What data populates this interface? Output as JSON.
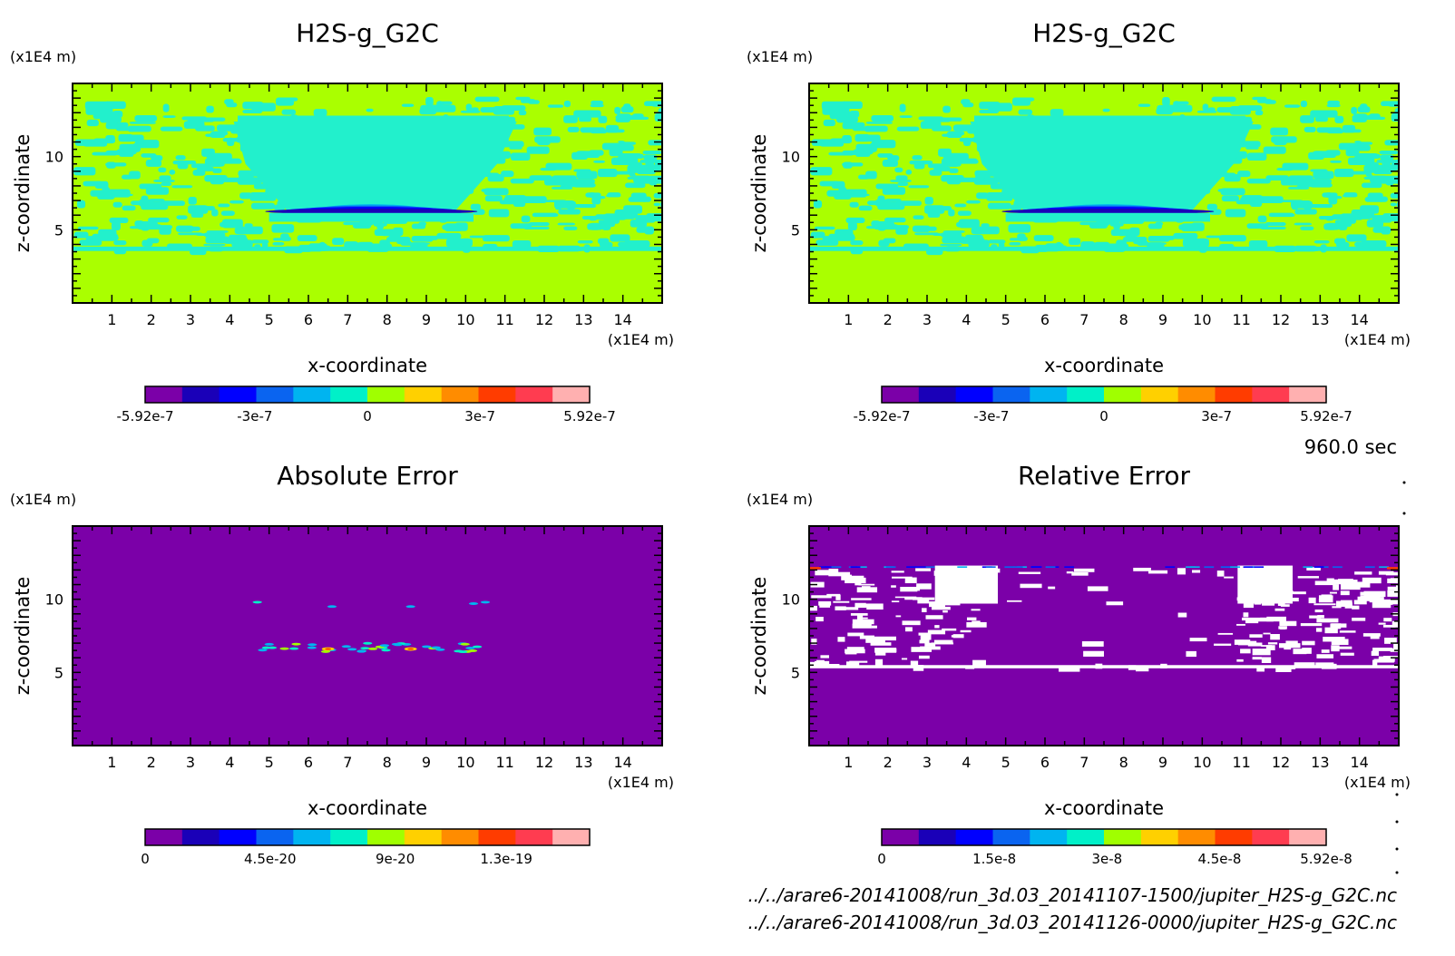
{
  "colors": {
    "levels_11": [
      "#7b00a8",
      "#1a00b8",
      "#0000ff",
      "#0a64f0",
      "#00b4f0",
      "#00f0c8",
      "#a0ff00",
      "#ffd000",
      "#ff8c00",
      "#ff3c00",
      "#ff3c50",
      "#ffb0b0"
    ],
    "bg_yellowgreen": "#aaff00",
    "bg_cyan": "#22f0cc",
    "bg_purple": "#7b00a8",
    "white": "#ffffff"
  },
  "time_label": "960.0 sec",
  "files": [
    "../../arare6-20141008/run_3d.03_20141107-1500/jupiter_H2S-g_G2C.nc",
    "../../arare6-20141008/run_3d.03_20141126-0000/jupiter_H2S-g_G2C.nc"
  ],
  "chart_data": [
    {
      "type": "heatmap",
      "title": "H2S-g_G2C",
      "xlabel": "x-coordinate",
      "ylabel": "z-coordinate",
      "x_unit": "(x1E4 m)",
      "y_unit": "(x1E4 m)",
      "xlim": [
        0,
        15
      ],
      "ylim": [
        0,
        15
      ],
      "x_ticks": [
        "1",
        "2",
        "3",
        "4",
        "5",
        "6",
        "7",
        "8",
        "9",
        "10",
        "11",
        "12",
        "13",
        "14"
      ],
      "y_ticks": [
        "5",
        "10"
      ],
      "colorbar_labels": [
        "-5.92e-7",
        "-3e-7",
        "0",
        "3e-7",
        "5.92e-7"
      ],
      "colorbar_range": [
        -5.92e-07,
        5.92e-07
      ]
    },
    {
      "type": "heatmap",
      "title": "H2S-g_G2C",
      "xlabel": "x-coordinate",
      "ylabel": "z-coordinate",
      "x_unit": "(x1E4 m)",
      "y_unit": "(x1E4 m)",
      "xlim": [
        0,
        15
      ],
      "ylim": [
        0,
        15
      ],
      "x_ticks": [
        "1",
        "2",
        "3",
        "4",
        "5",
        "6",
        "7",
        "8",
        "9",
        "10",
        "11",
        "12",
        "13",
        "14"
      ],
      "y_ticks": [
        "5",
        "10"
      ],
      "colorbar_labels": [
        "-5.92e-7",
        "-3e-7",
        "0",
        "3e-7",
        "5.92e-7"
      ],
      "colorbar_range": [
        -5.92e-07,
        5.92e-07
      ]
    },
    {
      "type": "heatmap",
      "title": "Absolute Error",
      "xlabel": "x-coordinate",
      "ylabel": "z-coordinate",
      "x_unit": "(x1E4 m)",
      "y_unit": "(x1E4 m)",
      "xlim": [
        0,
        15
      ],
      "ylim": [
        0,
        15
      ],
      "x_ticks": [
        "1",
        "2",
        "3",
        "4",
        "5",
        "6",
        "7",
        "8",
        "9",
        "10",
        "11",
        "12",
        "13",
        "14"
      ],
      "y_ticks": [
        "5",
        "10"
      ],
      "colorbar_labels": [
        "0",
        "4.5e-20",
        "9e-20",
        "1.3e-19"
      ],
      "colorbar_range": [
        0,
        1.6e-19
      ]
    },
    {
      "type": "heatmap",
      "title": "Relative Error",
      "xlabel": "x-coordinate",
      "ylabel": "z-coordinate",
      "x_unit": "(x1E4 m)",
      "y_unit": "(x1E4 m)",
      "xlim": [
        0,
        15
      ],
      "ylim": [
        0,
        15
      ],
      "x_ticks": [
        "1",
        "2",
        "3",
        "4",
        "5",
        "6",
        "7",
        "8",
        "9",
        "10",
        "11",
        "12",
        "13",
        "14"
      ],
      "y_ticks": [
        "5",
        "10"
      ],
      "colorbar_labels": [
        "0",
        "1.5e-8",
        "3e-8",
        "4.5e-8",
        "5.92e-8"
      ],
      "colorbar_range": [
        0,
        5.92e-08
      ]
    }
  ]
}
